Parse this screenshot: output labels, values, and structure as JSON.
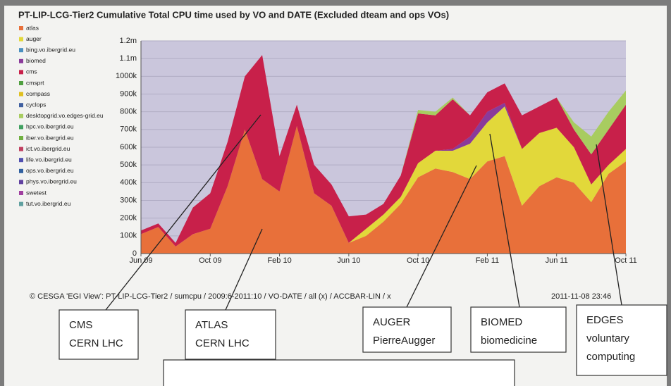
{
  "chart_data": {
    "type": "stacked-area",
    "title": "PT-LIP-LCG-Tier2 Cumulative  Total CPU time used by VO and DATE (Excluded dteam and ops VOs)",
    "categories": [
      "Jun 09",
      null,
      null,
      null,
      "Oct 09",
      null,
      null,
      null,
      "Feb 10",
      null,
      null,
      null,
      "Jun 10",
      null,
      null,
      null,
      "Oct 10",
      null,
      null,
      null,
      "Feb 11",
      null,
      null,
      null,
      "Jun 11",
      null,
      null,
      null,
      "Oct 11"
    ],
    "series": [
      {
        "name": "atlas",
        "color": "#e8703a",
        "values": [
          110000,
          150000,
          40000,
          110000,
          140000,
          380000,
          700000,
          420000,
          350000,
          720000,
          340000,
          270000,
          60000,
          100000,
          180000,
          280000,
          430000,
          480000,
          460000,
          420000,
          520000,
          550000,
          270000,
          380000,
          430000,
          400000,
          290000,
          450000,
          520000
        ]
      },
      {
        "name": "auger",
        "color": "#e2d83a",
        "values": [
          0,
          0,
          0,
          0,
          0,
          0,
          0,
          0,
          0,
          0,
          0,
          0,
          0,
          40000,
          40000,
          40000,
          80000,
          100000,
          120000,
          200000,
          220000,
          280000,
          320000,
          300000,
          280000,
          200000,
          100000,
          50000,
          70000
        ]
      },
      {
        "name": "biomed",
        "color": "#8a3a9a",
        "values": [
          0,
          0,
          0,
          0,
          0,
          0,
          0,
          0,
          0,
          0,
          0,
          0,
          0,
          0,
          0,
          0,
          0,
          0,
          10000,
          40000,
          60000,
          20000,
          0,
          0,
          0,
          0,
          0,
          0,
          0
        ]
      },
      {
        "name": "cms",
        "color": "#c8204a",
        "values": [
          20000,
          20000,
          20000,
          150000,
          200000,
          250000,
          300000,
          700000,
          200000,
          120000,
          160000,
          120000,
          150000,
          80000,
          60000,
          120000,
          280000,
          200000,
          280000,
          120000,
          110000,
          110000,
          190000,
          150000,
          170000,
          100000,
          170000,
          200000,
          250000
        ]
      },
      {
        "name": "desktopgrid.vo.edges-grid.eu",
        "color": "#a8cc60",
        "values": [
          0,
          0,
          0,
          0,
          0,
          0,
          0,
          0,
          0,
          0,
          0,
          0,
          0,
          0,
          0,
          0,
          20000,
          20000,
          10000,
          0,
          0,
          0,
          0,
          0,
          0,
          40000,
          100000,
          100000,
          80000
        ]
      }
    ],
    "legend": [
      {
        "name": "atlas",
        "color": "#e8703a"
      },
      {
        "name": "auger",
        "color": "#e2d83a"
      },
      {
        "name": "bing.vo.ibergrid.eu",
        "color": "#4a90c0"
      },
      {
        "name": "biomed",
        "color": "#8a3a9a"
      },
      {
        "name": "cms",
        "color": "#c8204a"
      },
      {
        "name": "cmsprt",
        "color": "#50a040"
      },
      {
        "name": "compass",
        "color": "#e0c020"
      },
      {
        "name": "cyclops",
        "color": "#4060a0"
      },
      {
        "name": "desktopgrid.vo.edges-grid.eu",
        "color": "#a8cc60"
      },
      {
        "name": "hpc.vo.ibergrid.eu",
        "color": "#40a060"
      },
      {
        "name": "iber.vo.ibergrid.eu",
        "color": "#70b040"
      },
      {
        "name": "ict.vo.ibergrid.eu",
        "color": "#c04060"
      },
      {
        "name": "life.vo.ibergrid.eu",
        "color": "#5050b0"
      },
      {
        "name": "ops.vo.ibergrid.eu",
        "color": "#3060a0"
      },
      {
        "name": "phys.vo.ibergrid.eu",
        "color": "#6040a0"
      },
      {
        "name": "swetest",
        "color": "#a040a0"
      },
      {
        "name": "tut.vo.ibergrid.eu",
        "color": "#60a0a0"
      }
    ],
    "ylim": [
      0,
      1200000
    ],
    "yticks": [
      0,
      {
        "value": 100000,
        "label": "100k"
      },
      {
        "value": 200000,
        "label": "200k"
      },
      {
        "value": 300000,
        "label": "300k"
      },
      {
        "value": 400000,
        "label": "400k"
      },
      {
        "value": 500000,
        "label": "500k"
      },
      {
        "value": 600000,
        "label": "600k"
      },
      {
        "value": 700000,
        "label": "700k"
      },
      {
        "value": 800000,
        "label": "800k"
      },
      {
        "value": 900000,
        "label": "900k"
      },
      {
        "value": 1000000,
        "label": "1000k"
      },
      {
        "value": 1100000,
        "label": "1.1m"
      },
      {
        "value": 1200000,
        "label": "1.2m"
      }
    ],
    "grid": true,
    "footer": "© CESGA 'EGI View': PT-LIP-LCG-Tier2 / sumcpu / 2009:6-2011:10 / VO-DATE / all (x) / ACCBAR-LIN / x",
    "timestamp": "2011-11-08 23:46"
  },
  "annotations": [
    {
      "lines": [
        "CMS",
        "CERN LHC"
      ]
    },
    {
      "lines": [
        "ATLAS",
        "CERN LHC"
      ]
    },
    {
      "lines": [
        "AUGER",
        "PierreAugger"
      ]
    },
    {
      "lines": [
        "BIOMED",
        "biomedicine"
      ]
    },
    {
      "lines": [
        "EDGES",
        "voluntary",
        "computing"
      ]
    }
  ]
}
